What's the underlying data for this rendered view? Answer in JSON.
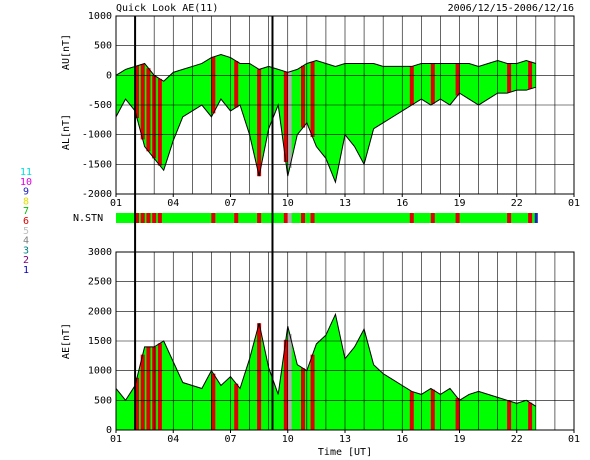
{
  "chart_data": [
    {
      "type": "band",
      "title": "Quick Look AE(11)",
      "subtitle": "2006/12/15-2006/12/16",
      "y_labels": [
        "AU[nT]",
        "AL[nT]"
      ],
      "x": [
        0,
        0.5,
        1,
        1.5,
        2,
        2.5,
        3,
        3.5,
        4,
        4.5,
        5,
        5.5,
        6,
        6.5,
        7,
        7.5,
        8,
        8.5,
        9,
        9.5,
        10,
        10.5,
        11,
        11.5,
        12,
        12.5,
        13,
        13.5,
        14,
        14.5,
        15,
        15.5,
        16,
        16.5,
        17,
        17.5,
        18,
        18.5,
        19,
        19.5,
        20,
        20.5,
        21,
        21.5,
        22
      ],
      "series": [
        {
          "name": "AU",
          "color": "#000000",
          "values": [
            0,
            100,
            150,
            200,
            0,
            -100,
            50,
            100,
            150,
            200,
            300,
            350,
            300,
            200,
            200,
            100,
            150,
            100,
            50,
            100,
            200,
            250,
            200,
            150,
            200,
            200,
            200,
            200,
            150,
            150,
            150,
            150,
            200,
            200,
            200,
            200,
            200,
            200,
            150,
            200,
            250,
            200,
            200,
            250,
            200
          ]
        },
        {
          "name": "AL",
          "color": "#000000",
          "values": [
            -700,
            -400,
            -600,
            -1200,
            -1400,
            -1600,
            -1100,
            -700,
            -600,
            -500,
            -700,
            -400,
            -600,
            -500,
            -1000,
            -1700,
            -900,
            -500,
            -1700,
            -1000,
            -800,
            -1200,
            -1400,
            -1800,
            -1000,
            -1200,
            -1500,
            -900,
            -800,
            -700,
            -600,
            -500,
            -400,
            -500,
            -400,
            -500,
            -300,
            -400,
            -500,
            -400,
            -300,
            -300,
            -250,
            -250,
            -200
          ]
        }
      ],
      "fill": "#00ff00",
      "xlim": [
        0,
        24
      ],
      "xticks": [
        {
          "value": 0,
          "label": "01"
        },
        {
          "value": 3,
          "label": "04"
        },
        {
          "value": 6,
          "label": "07"
        },
        {
          "value": 9,
          "label": "10"
        },
        {
          "value": 12,
          "label": "13"
        },
        {
          "value": 15,
          "label": "16"
        },
        {
          "value": 18,
          "label": "19"
        },
        {
          "value": 21,
          "label": "22"
        },
        {
          "value": 24,
          "label": "01"
        }
      ],
      "ylim": [
        -2000,
        1000
      ],
      "yticks": [
        1000,
        500,
        0,
        -500,
        -1000,
        -1500,
        -2000
      ],
      "grid": true
    },
    {
      "type": "area",
      "y_label": "AE[nT]",
      "x_label": "Time [UT]",
      "x": [
        0,
        0.5,
        1,
        1.5,
        2,
        2.5,
        3,
        3.5,
        4,
        4.5,
        5,
        5.5,
        6,
        6.5,
        7,
        7.5,
        8,
        8.5,
        9,
        9.5,
        10,
        10.5,
        11,
        11.5,
        12,
        12.5,
        13,
        13.5,
        14,
        14.5,
        15,
        15.5,
        16,
        16.5,
        17,
        17.5,
        18,
        18.5,
        19,
        19.5,
        20,
        20.5,
        21,
        21.5,
        22
      ],
      "series": [
        {
          "name": "AE",
          "color": "#000000",
          "values": [
            700,
            500,
            750,
            1400,
            1400,
            1500,
            1150,
            800,
            750,
            700,
            1000,
            750,
            900,
            700,
            1200,
            1800,
            1050,
            600,
            1750,
            1100,
            1000,
            1450,
            1600,
            1950,
            1200,
            1400,
            1700,
            1100,
            950,
            850,
            750,
            650,
            600,
            700,
            600,
            700,
            500,
            600,
            650,
            600,
            550,
            500,
            450,
            500,
            400
          ]
        }
      ],
      "fill": "#00ff00",
      "xlim": [
        0,
        24
      ],
      "xticks": [
        {
          "value": 0,
          "label": "01"
        },
        {
          "value": 3,
          "label": "04"
        },
        {
          "value": 6,
          "label": "07"
        },
        {
          "value": 9,
          "label": "10"
        },
        {
          "value": 12,
          "label": "13"
        },
        {
          "value": 15,
          "label": "16"
        },
        {
          "value": 18,
          "label": "19"
        },
        {
          "value": 21,
          "label": "22"
        },
        {
          "value": 24,
          "label": "01"
        }
      ],
      "ylim": [
        0,
        3000
      ],
      "yticks": [
        3000,
        2500,
        2000,
        1500,
        1000,
        500,
        0
      ],
      "grid": true
    }
  ],
  "station_bar": {
    "label": "N.STN",
    "color": "#00ff00",
    "end": 22.1,
    "red_color": "#e00000",
    "red": [
      1.1,
      1.4,
      1.7,
      2.0,
      2.3,
      5.1,
      6.3,
      7.5,
      8.9,
      9.8,
      10.3,
      15.5,
      16.6,
      17.9,
      20.6,
      21.7
    ],
    "gray_color": "#b0b0b0",
    "gray": [
      9.1
    ]
  },
  "markers": [
    1.0,
    8.2
  ],
  "station_legend": [
    {
      "label": "11",
      "color": "#00e0e0"
    },
    {
      "label": "10",
      "color": "#e000e0"
    },
    {
      "label": "9",
      "color": "#2020c0"
    },
    {
      "label": "8",
      "color": "#e0e000"
    },
    {
      "label": "7",
      "color": "#00c000"
    },
    {
      "label": "6",
      "color": "#e00000"
    },
    {
      "label": "5",
      "color": "#c0c0c0"
    },
    {
      "label": "4",
      "color": "#808080"
    },
    {
      "label": "3",
      "color": "#008080"
    },
    {
      "label": "2",
      "color": "#800080"
    },
    {
      "label": "1",
      "color": "#0000c0"
    }
  ]
}
